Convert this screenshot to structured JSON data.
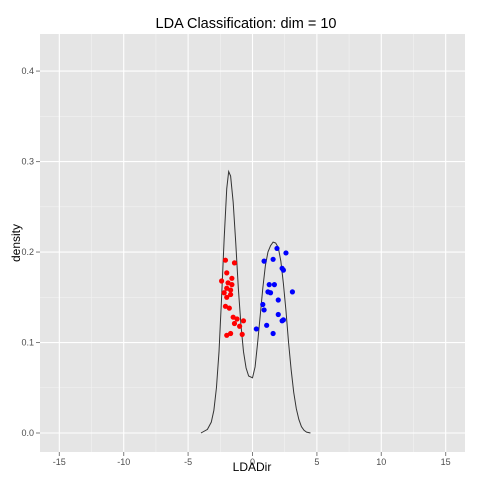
{
  "chart_data": {
    "type": "scatter",
    "title": "LDA Classification: dim = 10",
    "xlabel": "LDADir",
    "ylabel": "density",
    "xlim": [
      -16.5,
      16.5
    ],
    "ylim": [
      -0.021,
      0.441
    ],
    "x_ticks": [
      -15,
      -10,
      -5,
      0,
      5,
      10,
      15
    ],
    "x_tick_labels": [
      "-15",
      "-10",
      "-5",
      "0",
      "5",
      "10",
      "15"
    ],
    "y_ticks": [
      0.0,
      0.1,
      0.2,
      0.3,
      0.4
    ],
    "y_tick_labels": [
      "0.0",
      "0.1",
      "0.2",
      "0.3",
      "0.4"
    ],
    "grid": true,
    "panel_background": "#e5e5e5",
    "grid_color": "#ffffff",
    "series": [
      {
        "color": "#ff0000",
        "points": [
          [
            -2.1,
            0.191
          ],
          [
            -1.4,
            0.188
          ],
          [
            -2.0,
            0.177
          ],
          [
            -1.6,
            0.171
          ],
          [
            -2.4,
            0.168
          ],
          [
            -1.9,
            0.166
          ],
          [
            -1.6,
            0.164
          ],
          [
            -2.0,
            0.16
          ],
          [
            -1.7,
            0.158
          ],
          [
            -2.2,
            0.155
          ],
          [
            -1.7,
            0.153
          ],
          [
            -2.0,
            0.15
          ],
          [
            -2.1,
            0.14
          ],
          [
            -1.8,
            0.138
          ],
          [
            -1.5,
            0.128
          ],
          [
            -1.2,
            0.126
          ],
          [
            -0.7,
            0.124
          ],
          [
            -1.4,
            0.121
          ],
          [
            -1.0,
            0.118
          ],
          [
            -1.7,
            0.11
          ],
          [
            -2.0,
            0.108
          ],
          [
            -0.8,
            0.109
          ]
        ]
      },
      {
        "color": "#0000ff",
        "points": [
          [
            1.9,
            0.204
          ],
          [
            2.6,
            0.199
          ],
          [
            0.9,
            0.19
          ],
          [
            1.6,
            0.192
          ],
          [
            2.3,
            0.182
          ],
          [
            2.4,
            0.18
          ],
          [
            1.3,
            0.164
          ],
          [
            1.7,
            0.164
          ],
          [
            1.2,
            0.156
          ],
          [
            1.4,
            0.155
          ],
          [
            3.1,
            0.156
          ],
          [
            2.0,
            0.147
          ],
          [
            0.8,
            0.142
          ],
          [
            0.9,
            0.136
          ],
          [
            2.0,
            0.131
          ],
          [
            2.4,
            0.125
          ],
          [
            2.3,
            0.124
          ],
          [
            1.1,
            0.119
          ],
          [
            0.3,
            0.115
          ],
          [
            1.6,
            0.11
          ]
        ]
      }
    ],
    "density_curve": {
      "color": "#333333",
      "x": [
        -4.0,
        -3.5,
        -3.2,
        -3.0,
        -2.8,
        -2.6,
        -2.4,
        -2.2,
        -2.0,
        -1.85,
        -1.7,
        -1.5,
        -1.3,
        -1.1,
        -0.9,
        -0.7,
        -0.5,
        -0.3,
        0.0,
        0.2,
        0.4,
        0.6,
        0.8,
        1.0,
        1.2,
        1.4,
        1.6,
        1.8,
        2.0,
        2.2,
        2.4,
        2.6,
        2.8,
        3.0,
        3.2,
        3.4,
        3.6,
        3.8,
        4.0,
        4.2,
        4.5
      ],
      "y": [
        0.0,
        0.004,
        0.012,
        0.025,
        0.05,
        0.09,
        0.15,
        0.215,
        0.27,
        0.289,
        0.284,
        0.255,
        0.21,
        0.16,
        0.12,
        0.09,
        0.072,
        0.063,
        0.061,
        0.073,
        0.1,
        0.13,
        0.16,
        0.185,
        0.2,
        0.207,
        0.211,
        0.21,
        0.205,
        0.19,
        0.165,
        0.135,
        0.1,
        0.07,
        0.045,
        0.027,
        0.015,
        0.007,
        0.003,
        0.001,
        0.0
      ]
    }
  }
}
